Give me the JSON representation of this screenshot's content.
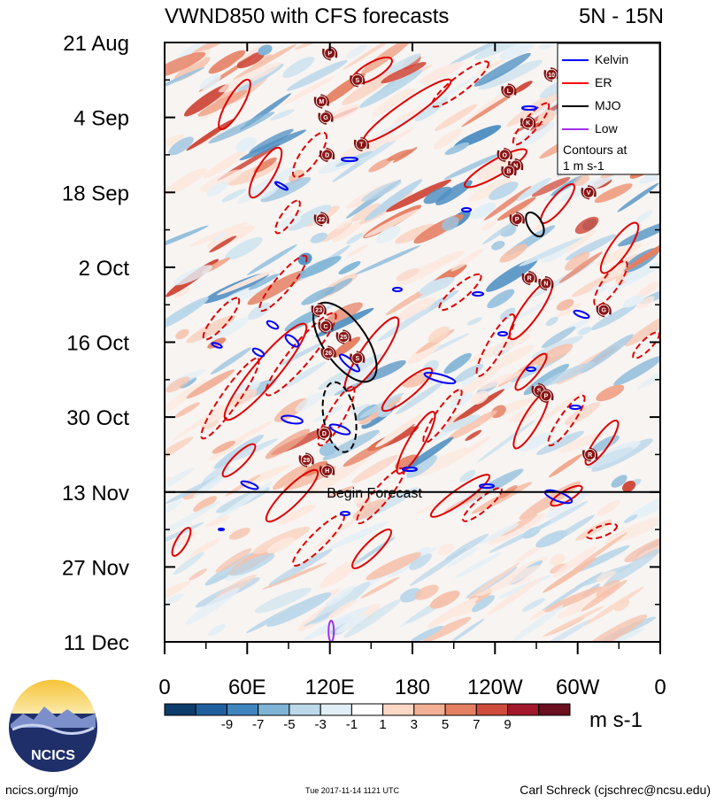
{
  "chart_data": {
    "type": "heatmap",
    "title": "VWND850 with CFS forecasts",
    "region": "5N - 15N",
    "xlabel": "",
    "ylabel": "",
    "x_ticks": [
      "0",
      "60E",
      "120E",
      "180",
      "120W",
      "60W",
      "0"
    ],
    "x_tick_degrees": [
      0,
      60,
      120,
      180,
      240,
      300,
      360
    ],
    "y_ticks": [
      "21 Aug",
      "4 Sep",
      "18 Sep",
      "2 Oct",
      "16 Oct",
      "30 Oct",
      "13 Nov",
      "27 Nov",
      "11 Dec"
    ],
    "y_start": "2017-08-21",
    "y_end": "2017-12-11",
    "forecast_start": "2017-11-13",
    "forecast_label": "Begin Forecast",
    "colorbar": {
      "labels": [
        "-9",
        "-7",
        "-5",
        "-3",
        "-1",
        "1",
        "3",
        "5",
        "7",
        "9"
      ],
      "units": "m s-1",
      "colors": [
        "#0b3c6b",
        "#1f5f9e",
        "#3f86bf",
        "#7fb4d6",
        "#bcd9ea",
        "#e2eef5",
        "#ffffff",
        "#fbd8c6",
        "#f3b095",
        "#e57f62",
        "#cf4b3c",
        "#a3172c",
        "#6b0f1f"
      ]
    },
    "legend": {
      "position": "top-right",
      "entries": [
        {
          "name": "Kelvin",
          "color": "#0000ff"
        },
        {
          "name": "ER",
          "color": "#ff0000"
        },
        {
          "name": "MJO",
          "color": "#000000"
        },
        {
          "name": "Low",
          "color": "#a030f0"
        }
      ],
      "note_lines": [
        "Contours at",
        "1 m s-1"
      ]
    },
    "tropical_cyclones": [
      {
        "label": "P",
        "lon": 120,
        "date": "2017-08-23"
      },
      {
        "label": "S",
        "lon": 140,
        "date": "2017-08-28"
      },
      {
        "label": "M",
        "lon": 114,
        "date": "2017-09-01"
      },
      {
        "label": "G",
        "lon": 117,
        "date": "2017-09-04"
      },
      {
        "label": "L",
        "lon": 250,
        "date": "2017-08-30"
      },
      {
        "label": "10",
        "lon": 281,
        "date": "2017-08-27"
      },
      {
        "label": "K",
        "lon": 264,
        "date": "2017-09-05"
      },
      {
        "label": "T",
        "lon": 143,
        "date": "2017-09-09"
      },
      {
        "label": "D",
        "lon": 118,
        "date": "2017-09-11"
      },
      {
        "label": "O",
        "lon": 247,
        "date": "2017-09-11"
      },
      {
        "label": "N",
        "lon": 255,
        "date": "2017-09-13"
      },
      {
        "label": "B",
        "lon": 250,
        "date": "2017-09-14"
      },
      {
        "label": "V",
        "lon": 308,
        "date": "2017-09-18"
      },
      {
        "label": "22",
        "lon": 114,
        "date": "2017-09-23"
      },
      {
        "label": "P",
        "lon": 256,
        "date": "2017-09-23"
      },
      {
        "label": "R",
        "lon": 265,
        "date": "2017-10-04"
      },
      {
        "label": "N",
        "lon": 277,
        "date": "2017-10-05"
      },
      {
        "label": "G",
        "lon": 319,
        "date": "2017-10-10"
      },
      {
        "label": "23",
        "lon": 112,
        "date": "2017-10-10"
      },
      {
        "label": "C",
        "lon": 117,
        "date": "2017-10-13"
      },
      {
        "label": "25",
        "lon": 130,
        "date": "2017-10-15"
      },
      {
        "label": "26",
        "lon": 119,
        "date": "2017-10-18"
      },
      {
        "label": "S",
        "lon": 140,
        "date": "2017-10-19"
      },
      {
        "label": "S",
        "lon": 272,
        "date": "2017-10-25"
      },
      {
        "label": "P",
        "lon": 277,
        "date": "2017-10-26"
      },
      {
        "label": "D",
        "lon": 116,
        "date": "2017-11-02"
      },
      {
        "label": "29",
        "lon": 103,
        "date": "2017-11-07"
      },
      {
        "label": "H",
        "lon": 118,
        "date": "2017-11-09"
      },
      {
        "label": "R",
        "lon": 309,
        "date": "2017-11-06"
      }
    ],
    "kelvin_contours_count": 20,
    "er_contours_description": "red solid (positive) and dashed (negative) ellipses tilted toward the west with time",
    "mjo_contours": [
      {
        "sign": "positive",
        "lon": 131,
        "date": "2017-10-16"
      },
      {
        "sign": "negative",
        "lon": 127,
        "date": "2017-10-30"
      },
      {
        "sign": "positive",
        "lon": 269,
        "date": "2017-09-24"
      }
    ],
    "low_contour": {
      "lon": 121,
      "date": "2017-12-11"
    }
  },
  "footer": {
    "logo_text": "NCICS",
    "url": "ncics.org/mjo",
    "timestamp": "Tue 2017-11-14 1121 UTC",
    "author": "Carl Schreck (cjschrec@ncsu.edu)"
  }
}
